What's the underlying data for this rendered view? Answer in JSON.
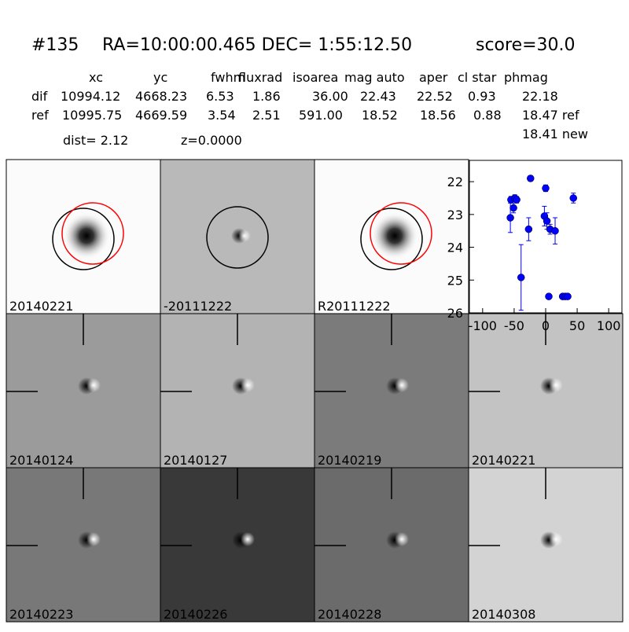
{
  "header": {
    "id": "#135",
    "coords": "RA=10:00:00.465 DEC= 1:55:12.50",
    "score": "score=30.0"
  },
  "table": {
    "columns": [
      "xc",
      "yc",
      "fwhm",
      "fluxrad",
      "isoarea",
      "mag auto",
      "aper",
      "cl star",
      "phmag"
    ],
    "rows": [
      [
        "dif",
        "10994.12",
        "4668.23",
        "6.53",
        "1.86",
        "36.00",
        "22.43",
        "22.52",
        "0.93",
        "22.18"
      ],
      [
        "ref",
        "10995.75",
        "4669.59",
        "3.54",
        "2.51",
        "591.00",
        "18.52",
        "18.56",
        "0.88",
        "18.47 ref"
      ]
    ],
    "extra": "18.41 new",
    "dist": "dist=  2.12",
    "z": "z=0.0000"
  },
  "panels": [
    "20140221",
    "-20111222",
    "R20111222",
    "20140124",
    "20140127",
    "20140219",
    "20140221",
    "20140223",
    "20140226",
    "20140228",
    "20140308"
  ],
  "chart_data": {
    "type": "scatter",
    "color": "#0000ff",
    "x": [
      -56,
      -55,
      -51,
      -49,
      -46,
      -39,
      -27,
      -24,
      -2,
      0,
      2,
      5,
      7,
      15,
      27,
      31,
      35,
      44
    ],
    "y": [
      23.1,
      22.55,
      22.8,
      22.5,
      22.55,
      24.92,
      23.45,
      21.9,
      23.05,
      22.2,
      23.2,
      25.5,
      23.45,
      23.5,
      25.5,
      25.5,
      25.5,
      22.5
    ],
    "errors": [
      0.45,
      0.1,
      0.15,
      0.1,
      0.1,
      1.0,
      0.35,
      0.08,
      0.3,
      0.1,
      0.25,
      0.08,
      0.15,
      0.4,
      0.05,
      0.05,
      0.05,
      0.15
    ],
    "xlim": [
      -121,
      121
    ],
    "xticks": [
      -100,
      -50,
      0,
      50,
      100
    ],
    "ylim": [
      26,
      21.35
    ],
    "yticks": [
      22,
      23,
      24,
      25,
      26
    ]
  }
}
